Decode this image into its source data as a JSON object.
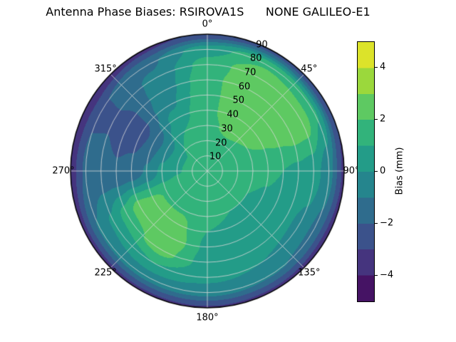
{
  "title": "Antenna Phase Biases: RSIROVA1S      NONE GALILEO-E1",
  "chart_data": {
    "type": "heatmap",
    "projection": "polar",
    "title": "Antenna Phase Biases: RSIROVA1S      NONE GALILEO-E1",
    "colormap": "viridis",
    "vmin": -5,
    "vmax": 5,
    "level_step": 1,
    "grid": true,
    "theta_ticks_deg": [
      0,
      45,
      90,
      135,
      180,
      225,
      270,
      315
    ],
    "theta_tick_labels": [
      "0°",
      "45°",
      "90°",
      "135°",
      "180°",
      "225°",
      "270°",
      "315°"
    ],
    "r_max": 90,
    "r_ticks": [
      10,
      20,
      30,
      40,
      50,
      60,
      70,
      80,
      90
    ],
    "r_tick_labels": [
      "10",
      "20",
      "30",
      "40",
      "50",
      "60",
      "70",
      "80",
      "90"
    ],
    "r_label_angle_deg": 22.5,
    "colorbar": {
      "label": "Bias (mm)",
      "ticks": [
        -4,
        -2,
        0,
        2,
        4
      ],
      "tick_labels": [
        "−4",
        "−2",
        "0",
        "2",
        "4"
      ]
    },
    "azimuth_deg": [
      0,
      30,
      60,
      90,
      120,
      150,
      180,
      210,
      240,
      270,
      300,
      330
    ],
    "zenith_deg": [
      0,
      10,
      20,
      30,
      40,
      50,
      60,
      70,
      80,
      90
    ],
    "bias_mm": [
      [
        1.5,
        1.5,
        1.5,
        1.5,
        1.5,
        1.5,
        1.5,
        1.5,
        1.5,
        1.5,
        1.5,
        1.5
      ],
      [
        1.7,
        1.7,
        1.7,
        1.6,
        1.5,
        1.4,
        1.4,
        1.5,
        1.5,
        1.3,
        1.3,
        1.5
      ],
      [
        1.8,
        1.9,
        1.8,
        1.5,
        1.2,
        1.2,
        1.3,
        1.6,
        1.6,
        0.9,
        0.8,
        1.4
      ],
      [
        1.9,
        2.1,
        2.0,
        1.4,
        1.0,
        1.0,
        1.2,
        1.9,
        1.9,
        0.2,
        -0.5,
        1.0
      ],
      [
        1.9,
        2.3,
        2.2,
        1.2,
        0.8,
        0.8,
        1.0,
        2.4,
        2.3,
        -0.9,
        -1.7,
        0.4
      ],
      [
        1.8,
        2.6,
        2.5,
        1.0,
        0.5,
        0.6,
        0.8,
        2.9,
        2.6,
        -1.7,
        -2.4,
        -0.2
      ],
      [
        1.7,
        2.9,
        2.9,
        0.8,
        0.2,
        0.3,
        0.6,
        2.4,
        1.5,
        -1.9,
        -2.4,
        -0.6
      ],
      [
        1.4,
        2.9,
        2.8,
        0.5,
        -0.2,
        0.0,
        0.3,
        1.0,
        0.2,
        -1.7,
        -2.1,
        -0.8
      ],
      [
        0.6,
        1.8,
        1.2,
        -0.6,
        -1.2,
        -0.9,
        -0.6,
        -0.6,
        -0.9,
        -1.8,
        -2.1,
        -1.2
      ],
      [
        -2.8,
        -2.4,
        -2.8,
        -3.2,
        -3.4,
        -3.2,
        -3.1,
        -3.2,
        -3.3,
        -3.5,
        -3.7,
        -3.3
      ]
    ]
  },
  "colors": {
    "background": "#ffffff",
    "grid_line": "#d9d9d9",
    "spine": "#000000",
    "text": "#000000"
  }
}
